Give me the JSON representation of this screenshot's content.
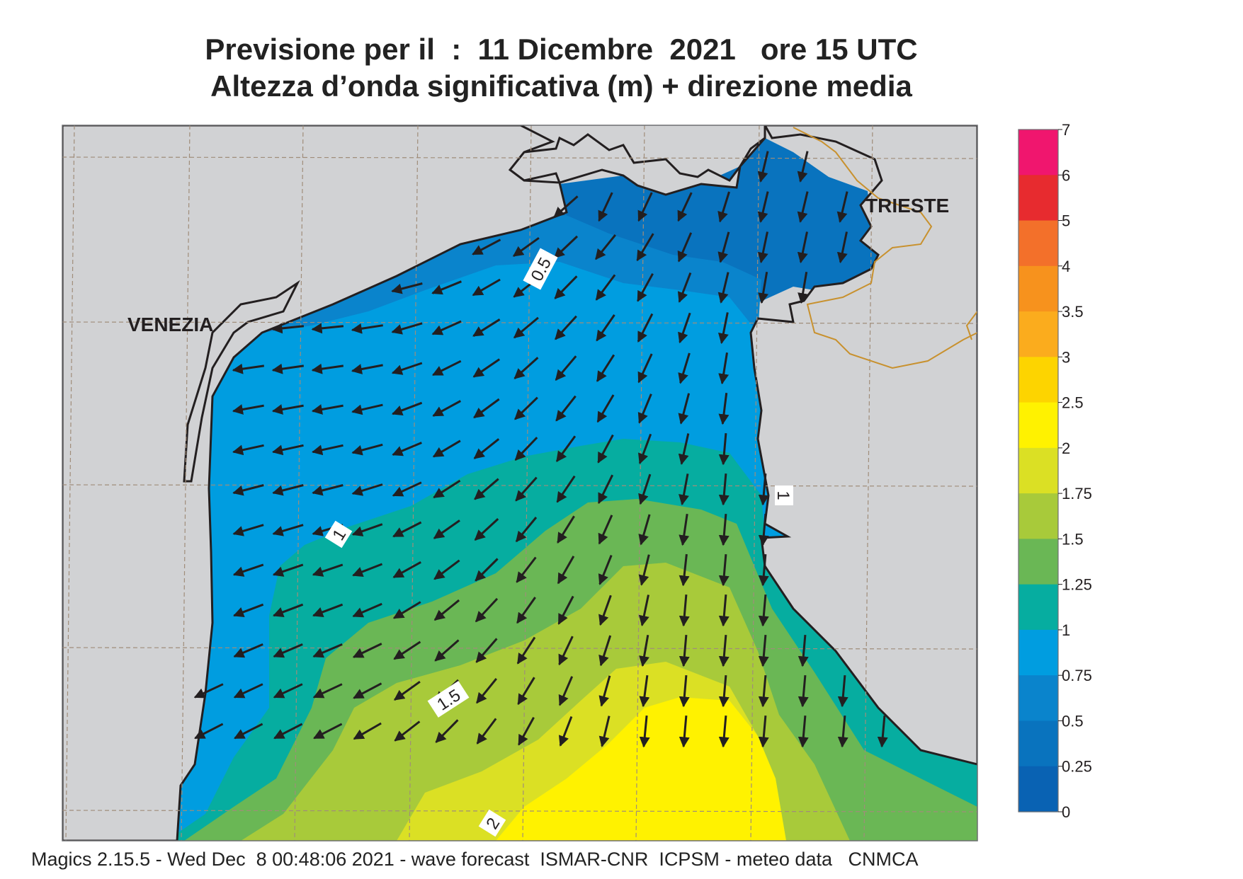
{
  "title": {
    "line1": "Previsione per il  :  11 Dicembre  2021   ore 15 UTC",
    "line2": "Altezza d’onda significativa (m) + direzione media"
  },
  "places": [
    {
      "name": "VENEZIA"
    },
    {
      "name": "TRIESTE"
    }
  ],
  "contour_labels": [
    "0.5",
    "1",
    "1",
    "1.5",
    "2"
  ],
  "legend": {
    "ticks": [
      "7",
      "6",
      "5",
      "4",
      "3.5",
      "3",
      "2.5",
      "2",
      "1.75",
      "1.5",
      "1.25",
      "1",
      "0.75",
      "0.5",
      "0.25",
      "0"
    ],
    "colors": [
      "#f0166e",
      "#e72b2f",
      "#f3702a",
      "#f7921d",
      "#fbac1d",
      "#fdd400",
      "#fff200",
      "#dbe024",
      "#a8ca3a",
      "#6ab755",
      "#06ada0",
      "#009de0",
      "#0a84cc",
      "#0973be",
      "#0962b3"
    ]
  },
  "colors": {
    "land": "#d1d2d4",
    "coast": "#231f20",
    "border": "#c8912e",
    "grid": "#a08d7a"
  },
  "footer": "Magics 2.15.5 - Wed Dec  8 00:48:06 2021 - wave forecast  ISMAR-CNR  ICPSM - meteo data   CNMCA"
}
